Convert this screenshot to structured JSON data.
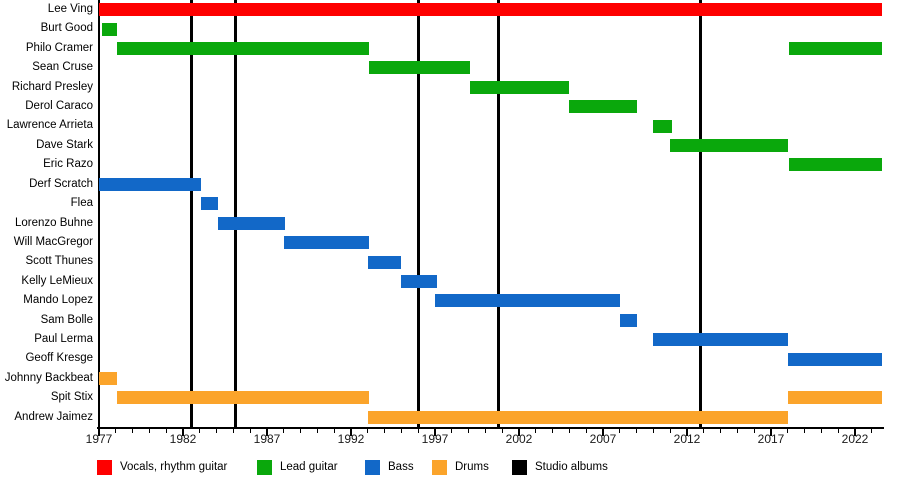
{
  "chart_data": {
    "type": "timeline",
    "title": "",
    "x_axis": {
      "min": 1977,
      "max": 2023.6,
      "major_ticks": [
        1977,
        1982,
        1987,
        1992,
        1997,
        2002,
        2007,
        2012,
        2017,
        2022
      ],
      "minor_tick_step": 1,
      "grid": false
    },
    "roles": {
      "vocals": {
        "label": "Vocals, rhythm guitar",
        "color": "#fe0000"
      },
      "lead_guitar": {
        "label": "Lead guitar",
        "color": "#0aa80c"
      },
      "bass": {
        "label": "Bass",
        "color": "#1268c8"
      },
      "drums": {
        "label": "Drums",
        "color": "#fba42b"
      },
      "albums": {
        "label": "Studio albums",
        "color": "#000000"
      }
    },
    "legend_order": [
      "vocals",
      "lead_guitar",
      "bass",
      "drums",
      "albums"
    ],
    "albums": {
      "label": "Studio albums",
      "color": "#000000",
      "years": [
        1982.5,
        1985.1,
        1996.0,
        2000.8,
        2012.8
      ]
    },
    "members": [
      {
        "name": "Lee Ving",
        "role": "vocals",
        "stints": [
          [
            1977.0,
            2023.6
          ]
        ]
      },
      {
        "name": "Burt Good",
        "role": "lead_guitar",
        "stints": [
          [
            1977.2,
            1978.1
          ]
        ]
      },
      {
        "name": "Philo Cramer",
        "role": "lead_guitar",
        "stints": [
          [
            1978.1,
            1993.1
          ],
          [
            2018.1,
            2023.6
          ]
        ]
      },
      {
        "name": "Sean Cruse",
        "role": "lead_guitar",
        "stints": [
          [
            1993.1,
            1999.1
          ]
        ]
      },
      {
        "name": "Richard Presley",
        "role": "lead_guitar",
        "stints": [
          [
            1999.1,
            2005.0
          ]
        ]
      },
      {
        "name": "Derol Caraco",
        "role": "lead_guitar",
        "stints": [
          [
            2005.0,
            2009.0
          ]
        ]
      },
      {
        "name": "Lawrence Arrieta",
        "role": "lead_guitar",
        "stints": [
          [
            2010.0,
            2011.1
          ]
        ]
      },
      {
        "name": "Dave Stark",
        "role": "lead_guitar",
        "stints": [
          [
            2011.0,
            2018.0
          ]
        ]
      },
      {
        "name": "Eric Razo",
        "role": "lead_guitar",
        "stints": [
          [
            2018.1,
            2023.6
          ]
        ]
      },
      {
        "name": "Derf Scratch",
        "role": "bass",
        "stints": [
          [
            1977.0,
            1983.1
          ]
        ]
      },
      {
        "name": "Flea",
        "role": "bass",
        "stints": [
          [
            1983.1,
            1984.1
          ]
        ]
      },
      {
        "name": "Lorenzo Buhne",
        "role": "bass",
        "stints": [
          [
            1984.1,
            1988.1
          ]
        ]
      },
      {
        "name": "Will MacGregor",
        "role": "bass",
        "stints": [
          [
            1988.0,
            1993.1
          ]
        ]
      },
      {
        "name": "Scott Thunes",
        "role": "bass",
        "stints": [
          [
            1993.0,
            1995.0
          ]
        ]
      },
      {
        "name": "Kelly LeMieux",
        "role": "bass",
        "stints": [
          [
            1995.0,
            1997.1
          ]
        ]
      },
      {
        "name": "Mando Lopez",
        "role": "bass",
        "stints": [
          [
            1997.0,
            2008.0
          ]
        ]
      },
      {
        "name": "Sam Bolle",
        "role": "bass",
        "stints": [
          [
            2008.0,
            2009.0
          ]
        ]
      },
      {
        "name": "Paul Lerma",
        "role": "bass",
        "stints": [
          [
            2010.0,
            2018.0
          ]
        ]
      },
      {
        "name": "Geoff Kresge",
        "role": "bass",
        "stints": [
          [
            2018.0,
            2023.6
          ]
        ]
      },
      {
        "name": "Johnny Backbeat",
        "role": "drums",
        "stints": [
          [
            1977.0,
            1978.1
          ]
        ]
      },
      {
        "name": "Spit Stix",
        "role": "drums",
        "stints": [
          [
            1978.1,
            1993.1
          ],
          [
            2018.0,
            2023.6
          ]
        ]
      },
      {
        "name": "Andrew Jaimez",
        "role": "drums",
        "stints": [
          [
            1993.0,
            2018.0
          ]
        ]
      }
    ]
  }
}
